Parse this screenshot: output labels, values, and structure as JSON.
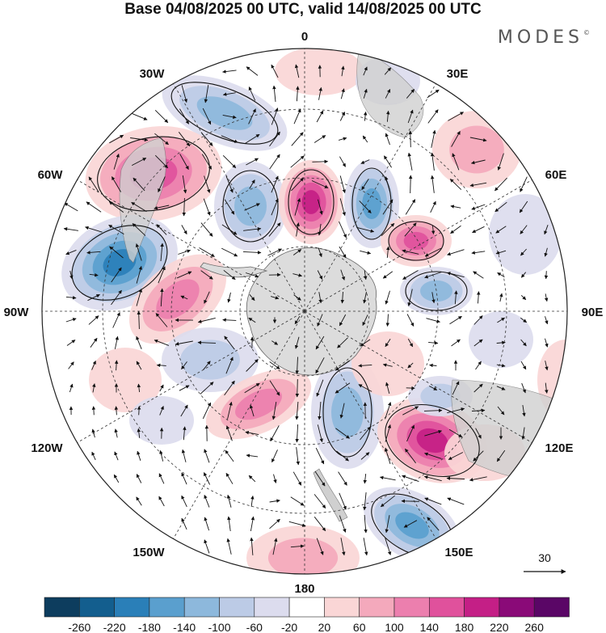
{
  "title": "Base 04/08/2025 00 UTC, valid 14/08/2025 00 UTC",
  "brand": "MODES",
  "brand_mark": "©",
  "map": {
    "projection": "south-polar-stereographic",
    "longitude_labels": [
      "0",
      "30E",
      "60E",
      "90E",
      "120E",
      "150E",
      "180",
      "150W",
      "120W",
      "90W",
      "60W",
      "30W"
    ],
    "vector_reference": "30"
  },
  "legend": {
    "ticks": [
      "-260",
      "-220",
      "-180",
      "-140",
      "-100",
      "-60",
      "-20",
      "20",
      "60",
      "100",
      "140",
      "180",
      "220",
      "260"
    ],
    "colors": [
      "#0d3d5e",
      "#135e8e",
      "#2a7fb8",
      "#5a9fce",
      "#8db8dc",
      "#bccbe6",
      "#dcdcee",
      "#ffffff",
      "#fad6d6",
      "#f4a9bc",
      "#ec7fae",
      "#e0519c",
      "#c41f86",
      "#8a0a78",
      "#5a0666"
    ]
  },
  "colors": {
    "land": "#d6d6d6",
    "positive": "#e0519c",
    "negative": "#2a7fb8"
  }
}
